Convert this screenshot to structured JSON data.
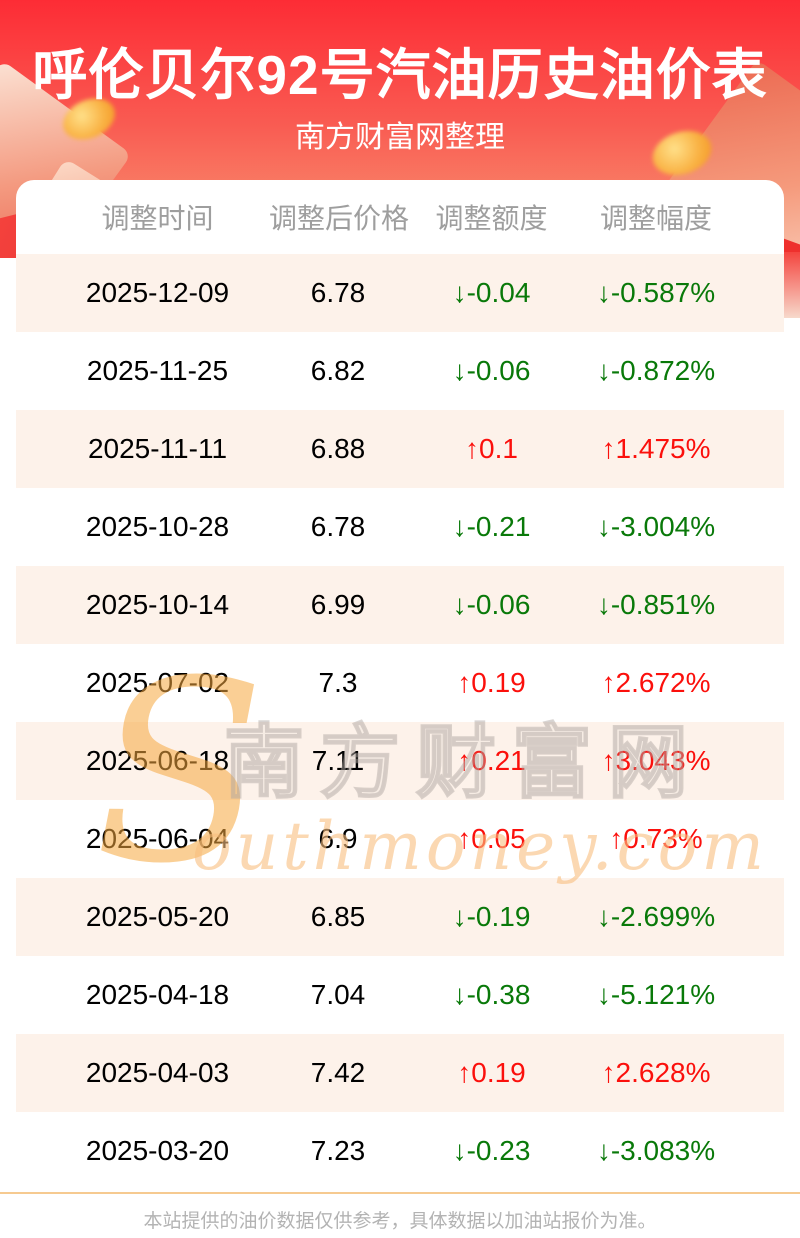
{
  "banner": {
    "title": "呼伦贝尔92号汽油历史油价表",
    "subtitle": "南方财富网整理"
  },
  "table": {
    "columns": [
      "调整时间",
      "调整后价格",
      "调整额度",
      "调整幅度"
    ],
    "rows": [
      {
        "date": "2025-12-09",
        "price": "6.78",
        "change": "↓-0.04",
        "pct": "↓-0.587%",
        "dir": "down"
      },
      {
        "date": "2025-11-25",
        "price": "6.82",
        "change": "↓-0.06",
        "pct": "↓-0.872%",
        "dir": "down"
      },
      {
        "date": "2025-11-11",
        "price": "6.88",
        "change": "↑0.1",
        "pct": "↑1.475%",
        "dir": "up"
      },
      {
        "date": "2025-10-28",
        "price": "6.78",
        "change": "↓-0.21",
        "pct": "↓-3.004%",
        "dir": "down"
      },
      {
        "date": "2025-10-14",
        "price": "6.99",
        "change": "↓-0.06",
        "pct": "↓-0.851%",
        "dir": "down"
      },
      {
        "date": "2025-07-02",
        "price": "7.3",
        "change": "↑0.19",
        "pct": "↑2.672%",
        "dir": "up"
      },
      {
        "date": "2025-06-18",
        "price": "7.11",
        "change": "↑0.21",
        "pct": "↑3.043%",
        "dir": "up"
      },
      {
        "date": "2025-06-04",
        "price": "6.9",
        "change": "↑0.05",
        "pct": "↑0.73%",
        "dir": "up"
      },
      {
        "date": "2025-05-20",
        "price": "6.85",
        "change": "↓-0.19",
        "pct": "↓-2.699%",
        "dir": "down"
      },
      {
        "date": "2025-04-18",
        "price": "7.04",
        "change": "↓-0.38",
        "pct": "↓-5.121%",
        "dir": "down"
      },
      {
        "date": "2025-04-03",
        "price": "7.42",
        "change": "↑0.19",
        "pct": "↑2.628%",
        "dir": "up"
      },
      {
        "date": "2025-03-20",
        "price": "7.23",
        "change": "↓-0.23",
        "pct": "↓-3.083%",
        "dir": "down"
      }
    ]
  },
  "watermark": {
    "initial": "S",
    "cn": "南方财富网",
    "en": "outhmoney.com"
  },
  "footer": {
    "disclaimer": "本站提供的油价数据仅供参考，具体数据以加油站报价为准。"
  },
  "colors": {
    "banner_top": "#fd2c35",
    "banner_bottom": "#f89c76",
    "row_alt_background": "#fdf2ea",
    "up_red": "#fb100c",
    "down_green": "#097909",
    "header_text": "#9e9e9e",
    "footer_divider": "#f6ca90",
    "footer_text": "#b3b3b3"
  },
  "chart_data": {
    "type": "table",
    "title": "呼伦贝尔92号汽油历史油价表",
    "subtitle": "南方财富网整理",
    "columns": [
      "调整时间",
      "调整后价格",
      "调整额度",
      "调整幅度"
    ],
    "rows": [
      [
        "2025-12-09",
        6.78,
        -0.04,
        "-0.587%"
      ],
      [
        "2025-11-25",
        6.82,
        -0.06,
        "-0.872%"
      ],
      [
        "2025-11-11",
        6.88,
        0.1,
        "+1.475%"
      ],
      [
        "2025-10-28",
        6.78,
        -0.21,
        "-3.004%"
      ],
      [
        "2025-10-14",
        6.99,
        -0.06,
        "-0.851%"
      ],
      [
        "2025-07-02",
        7.3,
        0.19,
        "+2.672%"
      ],
      [
        "2025-06-18",
        7.11,
        0.21,
        "+3.043%"
      ],
      [
        "2025-06-04",
        6.9,
        0.05,
        "+0.73%"
      ],
      [
        "2025-05-20",
        6.85,
        -0.19,
        "-2.699%"
      ],
      [
        "2025-04-18",
        7.04,
        -0.38,
        "-5.121%"
      ],
      [
        "2025-04-03",
        7.42,
        0.19,
        "+2.628%"
      ],
      [
        "2025-03-20",
        7.23,
        -0.23,
        "-3.083%"
      ]
    ]
  }
}
